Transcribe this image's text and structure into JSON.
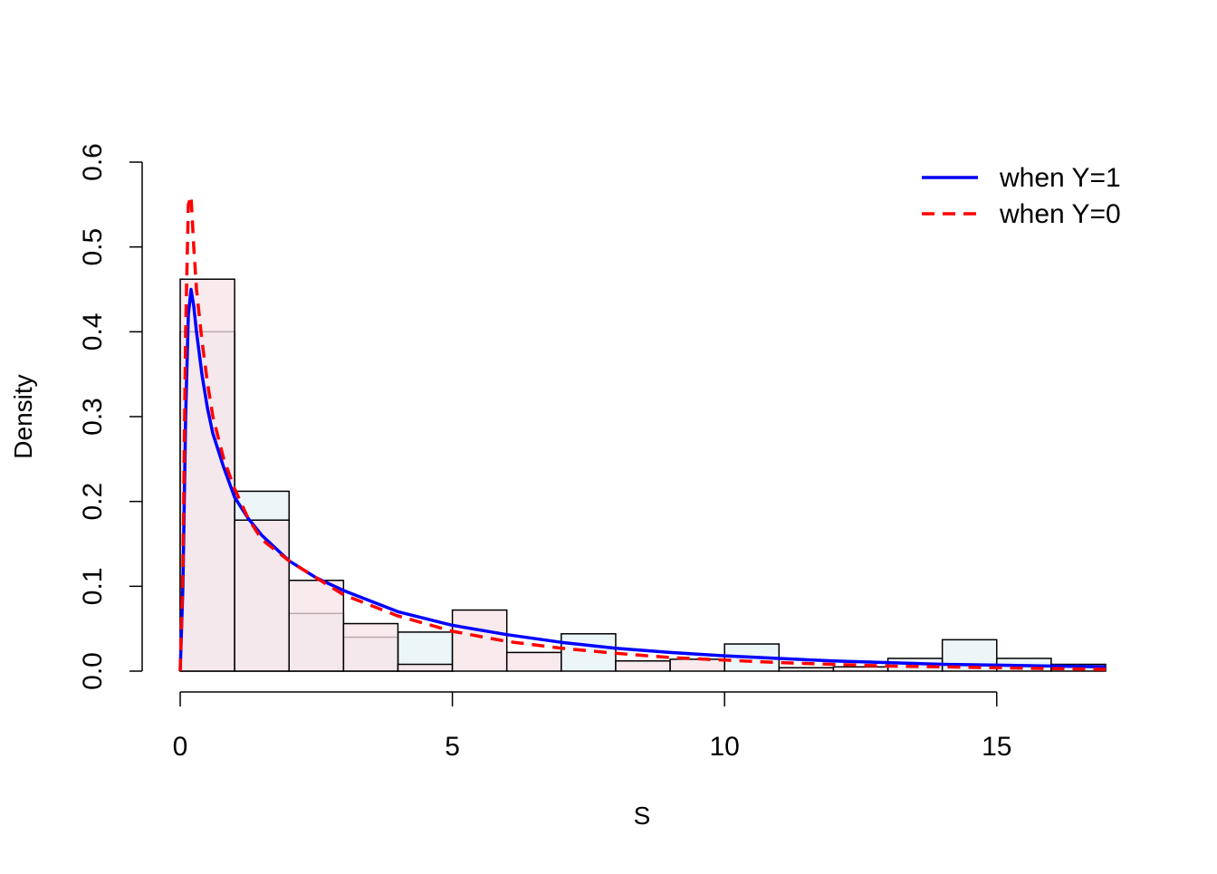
{
  "chart_data": {
    "type": "histogram",
    "xlabel": "S",
    "ylabel": "Density",
    "xlim": [
      0,
      17
    ],
    "ylim": [
      0,
      0.6
    ],
    "x_ticks": [
      "0",
      "5",
      "10",
      "15"
    ],
    "y_ticks": [
      "0.0",
      "0.1",
      "0.2",
      "0.3",
      "0.4",
      "0.5",
      "0.6"
    ],
    "grid": false,
    "histograms": [
      {
        "group": "Y=1",
        "fill": "#e6f3f7",
        "bins": [
          0,
          1,
          2,
          3,
          4,
          5,
          6,
          7,
          8,
          9,
          10,
          11,
          12,
          13,
          14,
          15,
          16,
          17
        ],
        "density": [
          0.4,
          0.212,
          0.068,
          0.04,
          0.046,
          0.0,
          0.0,
          0.044,
          0.0,
          0.0,
          0.032,
          0.0,
          0.0,
          0.015,
          0.037,
          0.015,
          0.008
        ]
      },
      {
        "group": "Y=0",
        "fill": "#f7e3e8",
        "bins": [
          0,
          1,
          2,
          3,
          4,
          5,
          6,
          7,
          8,
          9,
          10,
          11,
          12,
          13,
          14,
          15,
          16,
          17
        ],
        "density": [
          0.462,
          0.178,
          0.107,
          0.056,
          0.008,
          0.072,
          0.022,
          0.0,
          0.012,
          0.014,
          0.0,
          0.004,
          0.005,
          0.0,
          0.0,
          0.0,
          0.0
        ]
      }
    ],
    "series": [
      {
        "name": "when Y=1",
        "color": "#0000ff",
        "style": "solid",
        "x": [
          0,
          0.05,
          0.1,
          0.15,
          0.2,
          0.25,
          0.3,
          0.4,
          0.5,
          0.6,
          0.8,
          1.0,
          1.25,
          1.5,
          2.0,
          2.5,
          3.0,
          4.0,
          5.0,
          6.0,
          7.0,
          8.0,
          9.0,
          10.0,
          11.0,
          12.0,
          13.0,
          14.0,
          15.0,
          16.0,
          17.0
        ],
        "y": [
          0,
          0.1,
          0.3,
          0.42,
          0.45,
          0.43,
          0.4,
          0.35,
          0.31,
          0.28,
          0.24,
          0.205,
          0.18,
          0.16,
          0.13,
          0.11,
          0.095,
          0.07,
          0.054,
          0.043,
          0.034,
          0.027,
          0.022,
          0.018,
          0.015,
          0.012,
          0.01,
          0.008,
          0.007,
          0.006,
          0.005
        ]
      },
      {
        "name": "when Y=0",
        "color": "#ff0000",
        "style": "dashed",
        "x": [
          0,
          0.05,
          0.1,
          0.15,
          0.2,
          0.25,
          0.3,
          0.4,
          0.5,
          0.6,
          0.8,
          1.0,
          1.25,
          1.5,
          2.0,
          2.5,
          3.0,
          4.0,
          5.0,
          6.0,
          7.0,
          8.0,
          9.0,
          10.0,
          11.0,
          12.0,
          13.0,
          14.0,
          15.0,
          16.0,
          17.0
        ],
        "y": [
          0,
          0.12,
          0.4,
          0.55,
          0.56,
          0.5,
          0.45,
          0.39,
          0.34,
          0.3,
          0.25,
          0.215,
          0.18,
          0.155,
          0.13,
          0.11,
          0.09,
          0.065,
          0.047,
          0.035,
          0.027,
          0.021,
          0.016,
          0.013,
          0.01,
          0.008,
          0.006,
          0.005,
          0.004,
          0.003,
          0.002
        ]
      }
    ],
    "legend": {
      "position": "top-right",
      "entries": [
        "when Y=1",
        "when Y=0"
      ]
    }
  }
}
